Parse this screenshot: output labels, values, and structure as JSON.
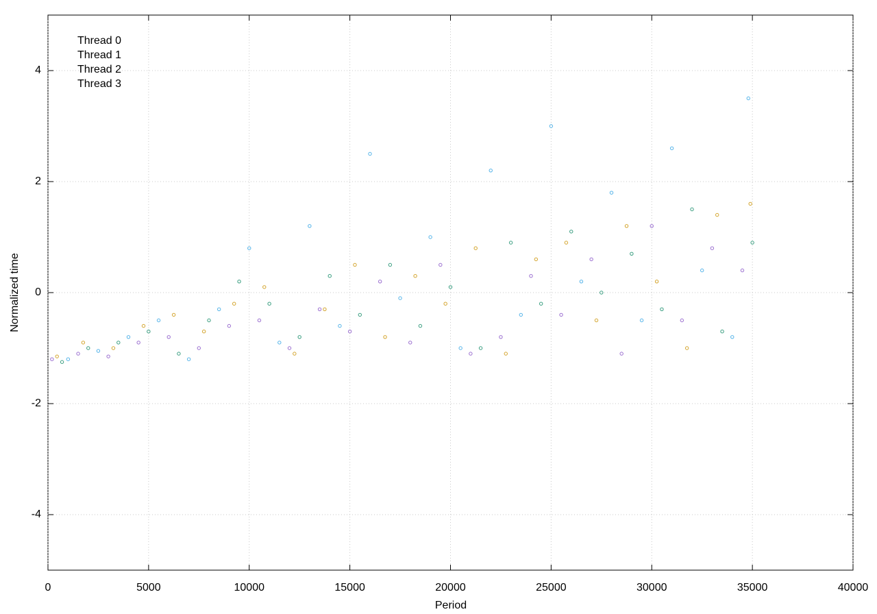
{
  "chart_data": {
    "type": "scatter",
    "x_label": "Period",
    "y_label": "Normalized time",
    "xlim": [
      0,
      40000
    ],
    "ylim": [
      -5,
      5
    ],
    "xticks": [
      0,
      5000,
      10000,
      15000,
      20000,
      25000,
      30000,
      35000,
      40000
    ],
    "yticks": [
      -4,
      -2,
      0,
      2,
      4
    ],
    "grid": true,
    "legend": "top-left",
    "series": [
      {
        "name": "Thread 0",
        "color": "#9b6fd0",
        "x": [
          200,
          1500,
          3000,
          4500,
          6000,
          7500,
          9000,
          10500,
          12000,
          13500,
          15000,
          16500,
          18000,
          19500,
          21000,
          22500,
          24000,
          25500,
          27000,
          28500,
          30000,
          31500,
          33000,
          34500
        ],
        "values": [
          -1.2,
          -1.1,
          -1.15,
          -0.9,
          -0.8,
          -1.0,
          -0.6,
          -0.5,
          -1.0,
          -0.3,
          -0.7,
          0.2,
          -0.9,
          0.5,
          -1.1,
          -0.8,
          0.3,
          -0.4,
          0.6,
          -1.1,
          1.2,
          -0.5,
          0.8,
          0.4
        ]
      },
      {
        "name": "Thread 1",
        "color": "#3a9e80",
        "x": [
          700,
          2000,
          3500,
          5000,
          6500,
          8000,
          9500,
          11000,
          12500,
          14000,
          15500,
          17000,
          18500,
          20000,
          21500,
          23000,
          24500,
          26000,
          27500,
          29000,
          30500,
          32000,
          33500,
          35000
        ],
        "values": [
          -1.25,
          -1.0,
          -0.9,
          -0.7,
          -1.1,
          -0.5,
          0.2,
          -0.2,
          -0.8,
          0.3,
          -0.4,
          0.5,
          -0.6,
          0.1,
          -1.0,
          0.9,
          -0.2,
          1.1,
          0.0,
          0.7,
          -0.3,
          1.5,
          -0.7,
          0.9
        ]
      },
      {
        "name": "Thread 2",
        "color": "#56b4e9",
        "x": [
          1000,
          2500,
          4000,
          5500,
          7000,
          8500,
          10000,
          11500,
          13000,
          14500,
          16000,
          17500,
          19000,
          20500,
          22000,
          23500,
          25000,
          26500,
          28000,
          29500,
          31000,
          32500,
          34000,
          34800
        ],
        "values": [
          -1.2,
          -1.05,
          -0.8,
          -0.5,
          -1.2,
          -0.3,
          0.8,
          -0.9,
          1.2,
          -0.6,
          2.5,
          -0.1,
          1.0,
          -1.0,
          2.2,
          -0.4,
          3.0,
          0.2,
          1.8,
          -0.5,
          2.6,
          0.4,
          -0.8,
          3.5
        ]
      },
      {
        "name": "Thread 3",
        "color": "#d4a52e",
        "x": [
          450,
          1750,
          3250,
          4750,
          6250,
          7750,
          9250,
          10750,
          12250,
          13750,
          15250,
          16750,
          18250,
          19750,
          21250,
          22750,
          24250,
          25750,
          27250,
          28750,
          30250,
          31750,
          33250,
          34900
        ],
        "values": [
          -1.15,
          -0.9,
          -1.0,
          -0.6,
          -0.4,
          -0.7,
          -0.2,
          0.1,
          -1.1,
          -0.3,
          0.5,
          -0.8,
          0.3,
          -0.2,
          0.8,
          -1.1,
          0.6,
          0.9,
          -0.5,
          1.2,
          0.2,
          -1.0,
          1.4,
          1.6
        ]
      }
    ]
  }
}
